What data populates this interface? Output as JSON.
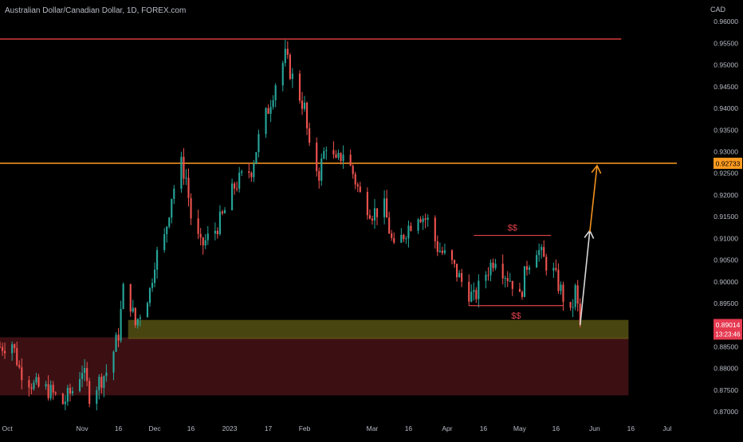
{
  "header": {
    "title": "Australian Dollar/Canadian Dollar, 1D, FOREX.com",
    "currency": "CAD"
  },
  "chart_data": {
    "type": "candlestick",
    "symbol_text": "Australian Dollar/Canadian Dollar, 1D, FOREX.com",
    "y_axis_unit": "CAD",
    "ylim": [
      0.868,
      0.965
    ],
    "y_ticks": [
      0.96,
      0.955,
      0.95,
      0.945,
      0.94,
      0.935,
      0.93,
      0.925,
      0.92,
      0.915,
      0.91,
      0.905,
      0.9,
      0.895,
      0.89,
      0.885,
      0.88,
      0.875,
      0.87
    ],
    "y_tick_labels": [
      "0.96000",
      "0.95500",
      "0.95000",
      "0.94500",
      "0.94000",
      "0.93500",
      "0.93000",
      "0.92500",
      "0.92000",
      "0.91500",
      "0.91000",
      "0.90500",
      "0.90000",
      "0.89500",
      "0.89000",
      "0.88500",
      "0.88000",
      "0.87500",
      "0.87000"
    ],
    "x_range": [
      "2022-09-28",
      "2023-07-05"
    ],
    "x_ticks": [
      {
        "date": "2022-10-01",
        "label": "Oct"
      },
      {
        "date": "2022-11-01",
        "label": "Nov"
      },
      {
        "date": "2022-11-16",
        "label": "16"
      },
      {
        "date": "2022-12-01",
        "label": "Dec"
      },
      {
        "date": "2022-12-16",
        "label": "16"
      },
      {
        "date": "2023-01-01",
        "label": "2023"
      },
      {
        "date": "2023-01-17",
        "label": "17"
      },
      {
        "date": "2023-02-01",
        "label": "Feb"
      },
      {
        "date": "2023-03-01",
        "label": "Mar"
      },
      {
        "date": "2023-03-16",
        "label": "16"
      },
      {
        "date": "2023-04-01",
        "label": "Apr"
      },
      {
        "date": "2023-04-16",
        "label": "16"
      },
      {
        "date": "2023-05-01",
        "label": "May"
      },
      {
        "date": "2023-05-16",
        "label": "16"
      },
      {
        "date": "2023-06-01",
        "label": "Jun"
      },
      {
        "date": "2023-06-16",
        "label": "16"
      },
      {
        "date": "2023-07-01",
        "label": "Jul"
      }
    ],
    "anchors": [
      [
        "2022-09-28",
        0.885
      ],
      [
        "2022-10-03",
        0.886
      ],
      [
        "2022-10-06",
        0.88
      ],
      [
        "2022-10-12",
        0.876
      ],
      [
        "2022-10-18",
        0.875
      ],
      [
        "2022-10-24",
        0.872
      ],
      [
        "2022-10-28",
        0.875
      ],
      [
        "2022-11-01",
        0.88
      ],
      [
        "2022-11-04",
        0.874
      ],
      [
        "2022-11-08",
        0.877
      ],
      [
        "2022-11-12",
        0.88
      ],
      [
        "2022-11-16",
        0.888
      ],
      [
        "2022-11-18",
        0.898
      ],
      [
        "2022-11-21",
        0.895
      ],
      [
        "2022-11-23",
        0.89
      ],
      [
        "2022-11-25",
        0.893
      ],
      [
        "2022-11-29",
        0.898
      ],
      [
        "2022-12-01",
        0.905
      ],
      [
        "2022-12-05",
        0.91
      ],
      [
        "2022-12-08",
        0.92
      ],
      [
        "2022-12-12",
        0.927
      ],
      [
        "2022-12-14",
        0.924
      ],
      [
        "2022-12-16",
        0.915
      ],
      [
        "2022-12-20",
        0.908
      ],
      [
        "2022-12-26",
        0.912
      ],
      [
        "2022-12-29",
        0.915
      ],
      [
        "2023-01-03",
        0.922
      ],
      [
        "2023-01-06",
        0.924
      ],
      [
        "2023-01-10",
        0.926
      ],
      [
        "2023-01-13",
        0.933
      ],
      [
        "2023-01-17",
        0.94
      ],
      [
        "2023-01-20",
        0.946
      ],
      [
        "2023-01-24",
        0.952
      ],
      [
        "2023-01-27",
        0.947
      ],
      [
        "2023-02-01",
        0.94
      ],
      [
        "2023-02-03",
        0.93
      ],
      [
        "2023-02-07",
        0.925
      ],
      [
        "2023-02-10",
        0.932
      ],
      [
        "2023-02-14",
        0.927
      ],
      [
        "2023-02-17",
        0.93
      ],
      [
        "2023-02-21",
        0.925
      ],
      [
        "2023-02-24",
        0.92
      ],
      [
        "2023-03-01",
        0.916
      ],
      [
        "2023-03-06",
        0.917
      ],
      [
        "2023-03-10",
        0.907
      ],
      [
        "2023-03-15",
        0.912
      ],
      [
        "2023-03-20",
        0.916
      ],
      [
        "2023-03-24",
        0.914
      ],
      [
        "2023-03-28",
        0.908
      ],
      [
        "2023-04-03",
        0.904
      ],
      [
        "2023-04-07",
        0.9
      ],
      [
        "2023-04-12",
        0.896
      ],
      [
        "2023-04-17",
        0.902
      ],
      [
        "2023-04-21",
        0.906
      ],
      [
        "2023-04-25",
        0.902
      ],
      [
        "2023-04-28",
        0.9
      ],
      [
        "2023-05-01",
        0.896
      ],
      [
        "2023-05-04",
        0.904
      ],
      [
        "2023-05-08",
        0.908
      ],
      [
        "2023-05-11",
        0.905
      ],
      [
        "2023-05-15",
        0.902
      ],
      [
        "2023-05-18",
        0.898
      ],
      [
        "2023-05-22",
        0.892
      ],
      [
        "2023-05-24",
        0.898
      ],
      [
        "2023-05-26",
        0.8901
      ]
    ],
    "horizontal_lines": [
      {
        "price": 0.956,
        "color": "#d63a3a",
        "from": "2022-09-28",
        "to": "2023-06-12"
      },
      {
        "price": 0.92733,
        "color": "#ff9b1f",
        "from": "2022-09-28",
        "to": "2023-07-05"
      }
    ],
    "zones": [
      {
        "from_price": 0.8738,
        "to_price": 0.8872,
        "from_date": "2022-09-28",
        "to_date": "2023-06-15",
        "color": "#6e1e23",
        "opacity": 0.55
      },
      {
        "from_price": 0.8868,
        "to_price": 0.8912,
        "from_date": "2022-11-20",
        "to_date": "2023-06-15",
        "color": "#6e6a18",
        "opacity": 0.65
      }
    ],
    "liquidity_levels": [
      {
        "price": 0.9107,
        "from": "2023-04-12",
        "to": "2023-05-14",
        "label": "$$",
        "label_side": "above"
      },
      {
        "price": 0.8945,
        "from": "2023-04-10",
        "to": "2023-05-19",
        "label": "$$",
        "label_side": "below"
      }
    ],
    "projection_arrows": [
      {
        "from_date": "2023-05-26",
        "from_price": 0.89,
        "to_date": "2023-05-30",
        "to_price": 0.9118,
        "color": "#d8d8d8"
      },
      {
        "from_date": "2023-05-30",
        "from_price": 0.9115,
        "to_date": "2023-06-02",
        "to_price": 0.9268,
        "color": "#f2921f"
      }
    ],
    "current_price": {
      "value": 0.89014,
      "label": "0.89014",
      "countdown": "13:23:46",
      "color": "#e53950"
    },
    "level_marker": {
      "value": 0.92733,
      "label": "0.92733",
      "color": "#ff9b1f"
    },
    "colors": {
      "up": "#26a69a",
      "down": "#ef5350",
      "axis_text": "#b8bcc6",
      "background": "#000000"
    }
  }
}
